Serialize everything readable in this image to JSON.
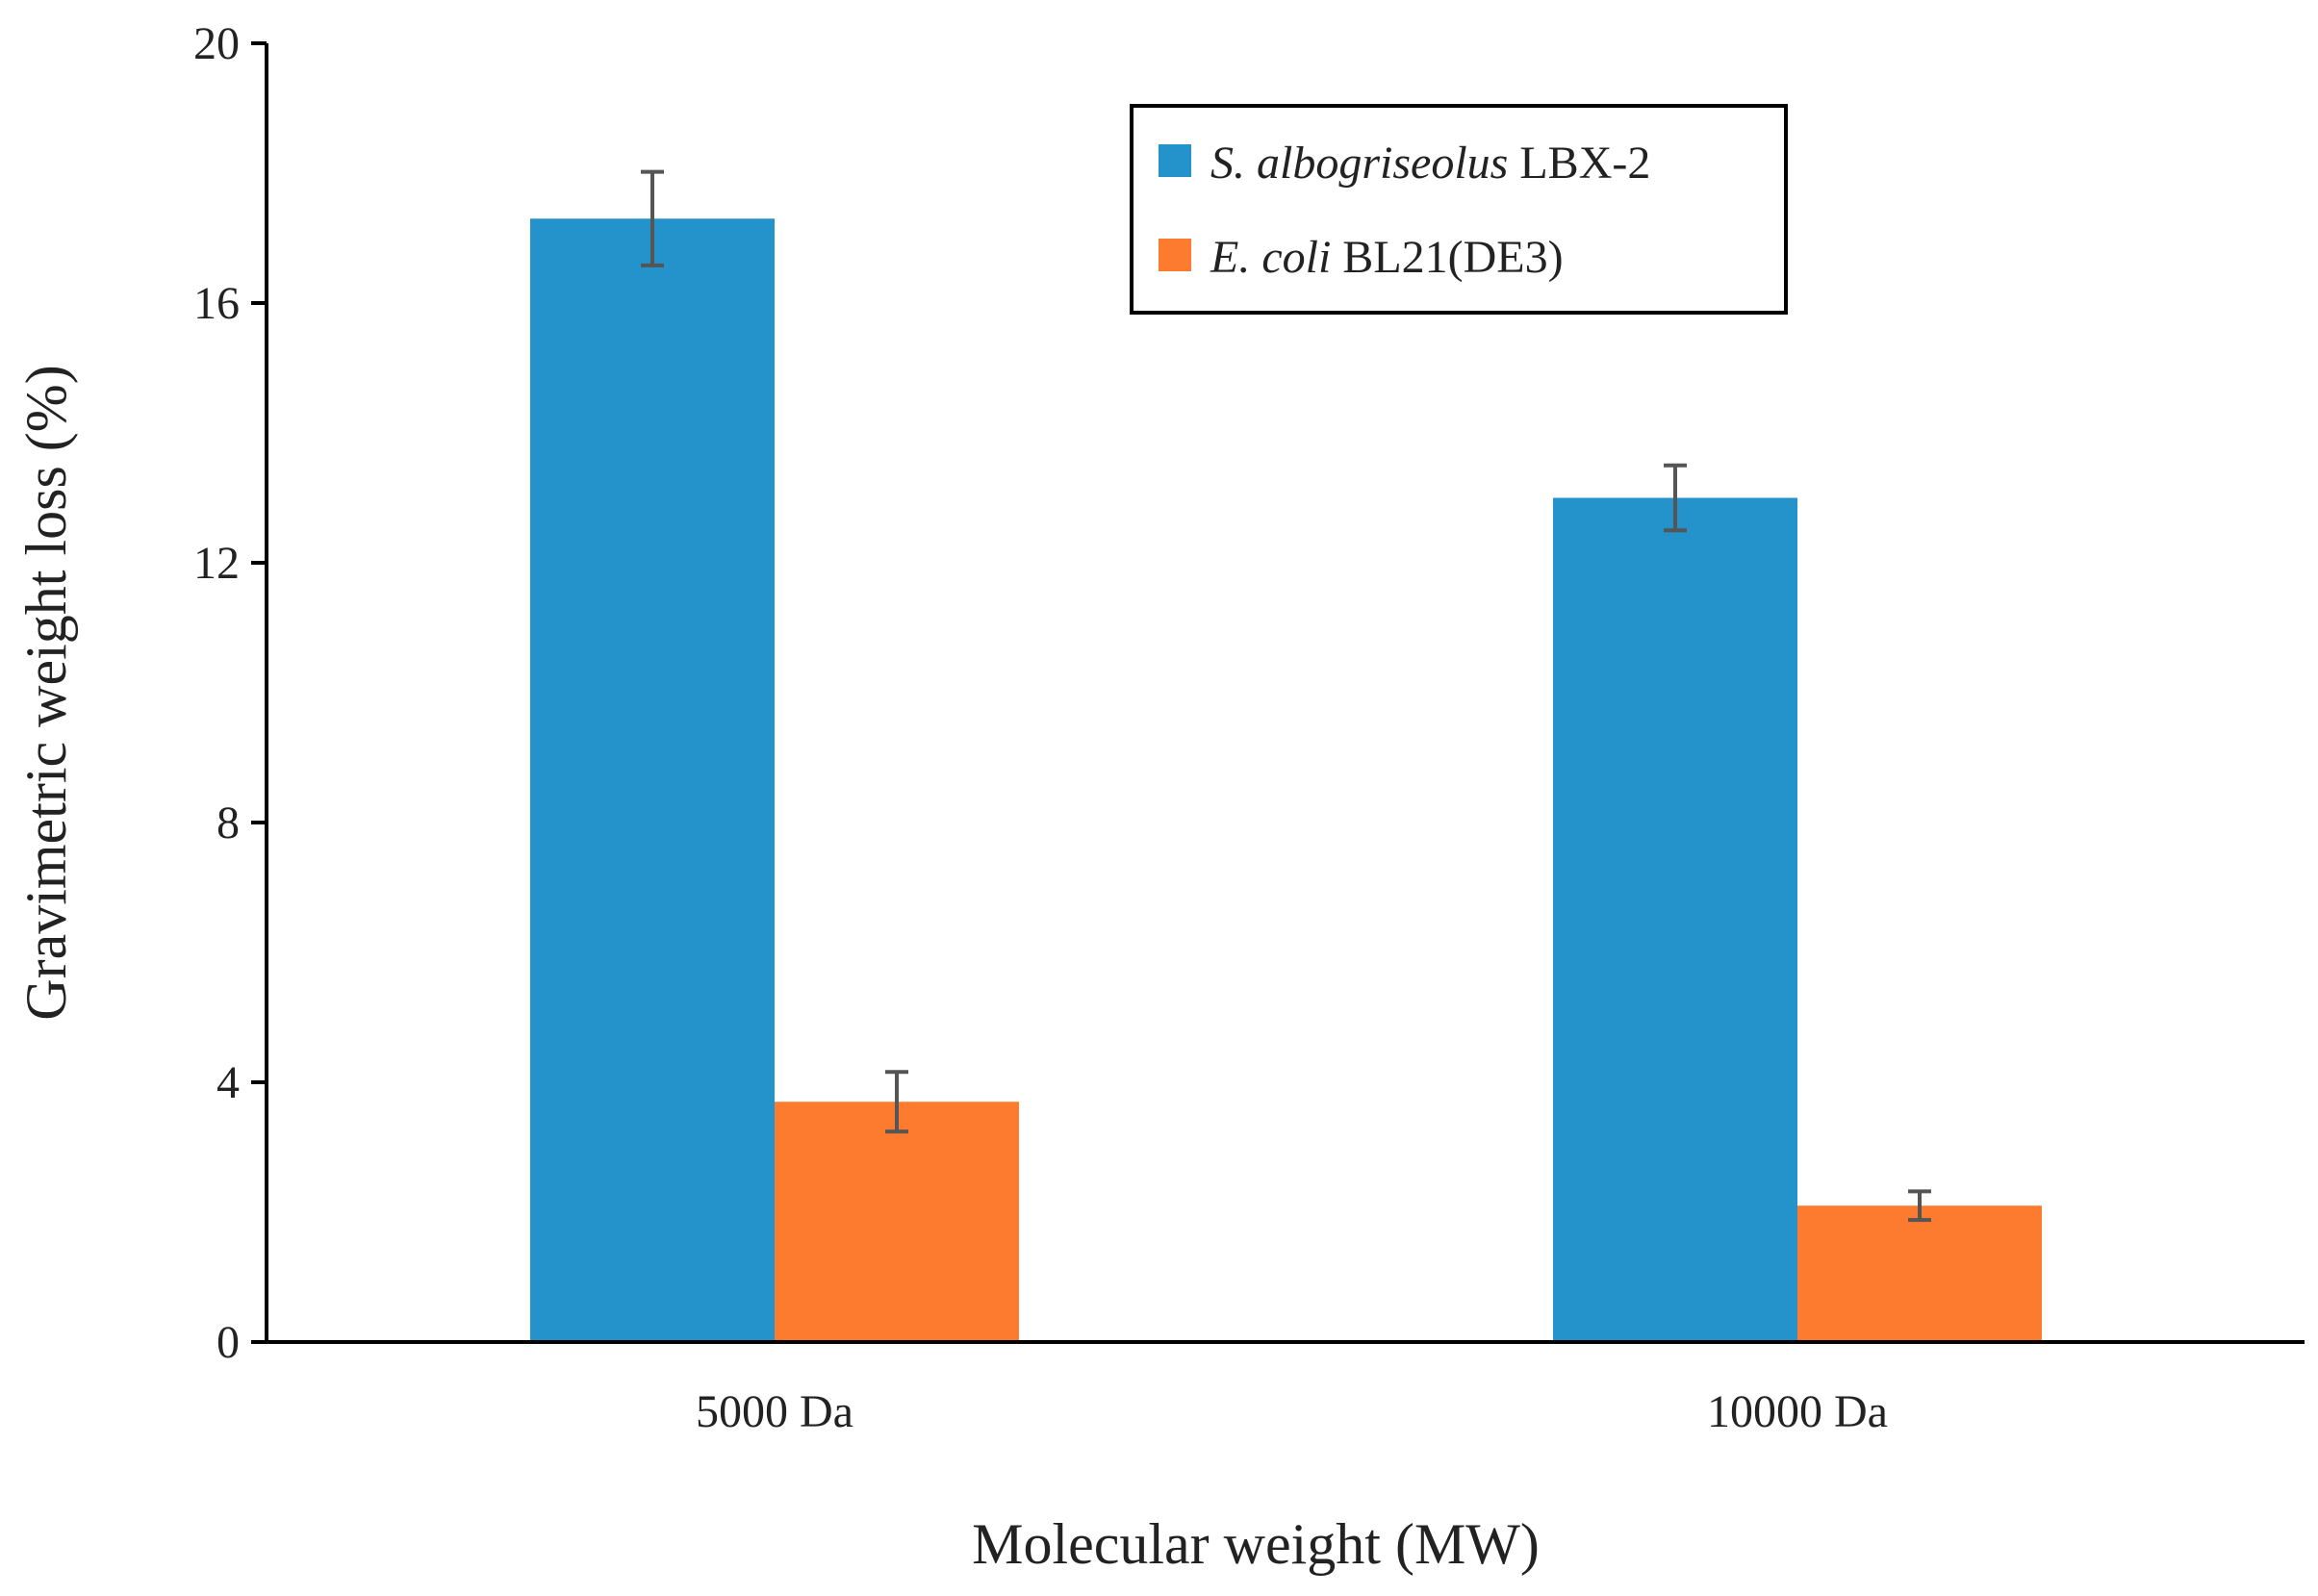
{
  "chart_data": {
    "type": "bar",
    "title": "",
    "xlabel": "Molecular weight (MW)",
    "ylabel": "Gravimetric weight loss (%)",
    "ylim": [
      0,
      20
    ],
    "yticks": [
      0,
      4,
      8,
      12,
      16,
      20
    ],
    "ytick_labels": [
      "0",
      "4",
      "8",
      "12",
      "16",
      "20"
    ],
    "categories": [
      "5000 Da",
      "10000 Da"
    ],
    "series": [
      {
        "name": "S. albogriseolus LBX-2",
        "name_italic": "S. albogriseolus",
        "name_roman": "LBX-2",
        "color": "#2492cb",
        "values": [
          17.3,
          13.0
        ],
        "errors": [
          0.72,
          0.5
        ]
      },
      {
        "name": "E. coli BL21(DE3)",
        "name_italic": "E. coli",
        "name_roman": "BL21(DE3)",
        "color": "#fd7b2f",
        "values": [
          3.7,
          2.1
        ],
        "errors": [
          0.46,
          0.22
        ]
      }
    ],
    "legend_position": "top-right",
    "grid": false,
    "error_bar_color": "#555555",
    "axis_color": "#000000"
  }
}
